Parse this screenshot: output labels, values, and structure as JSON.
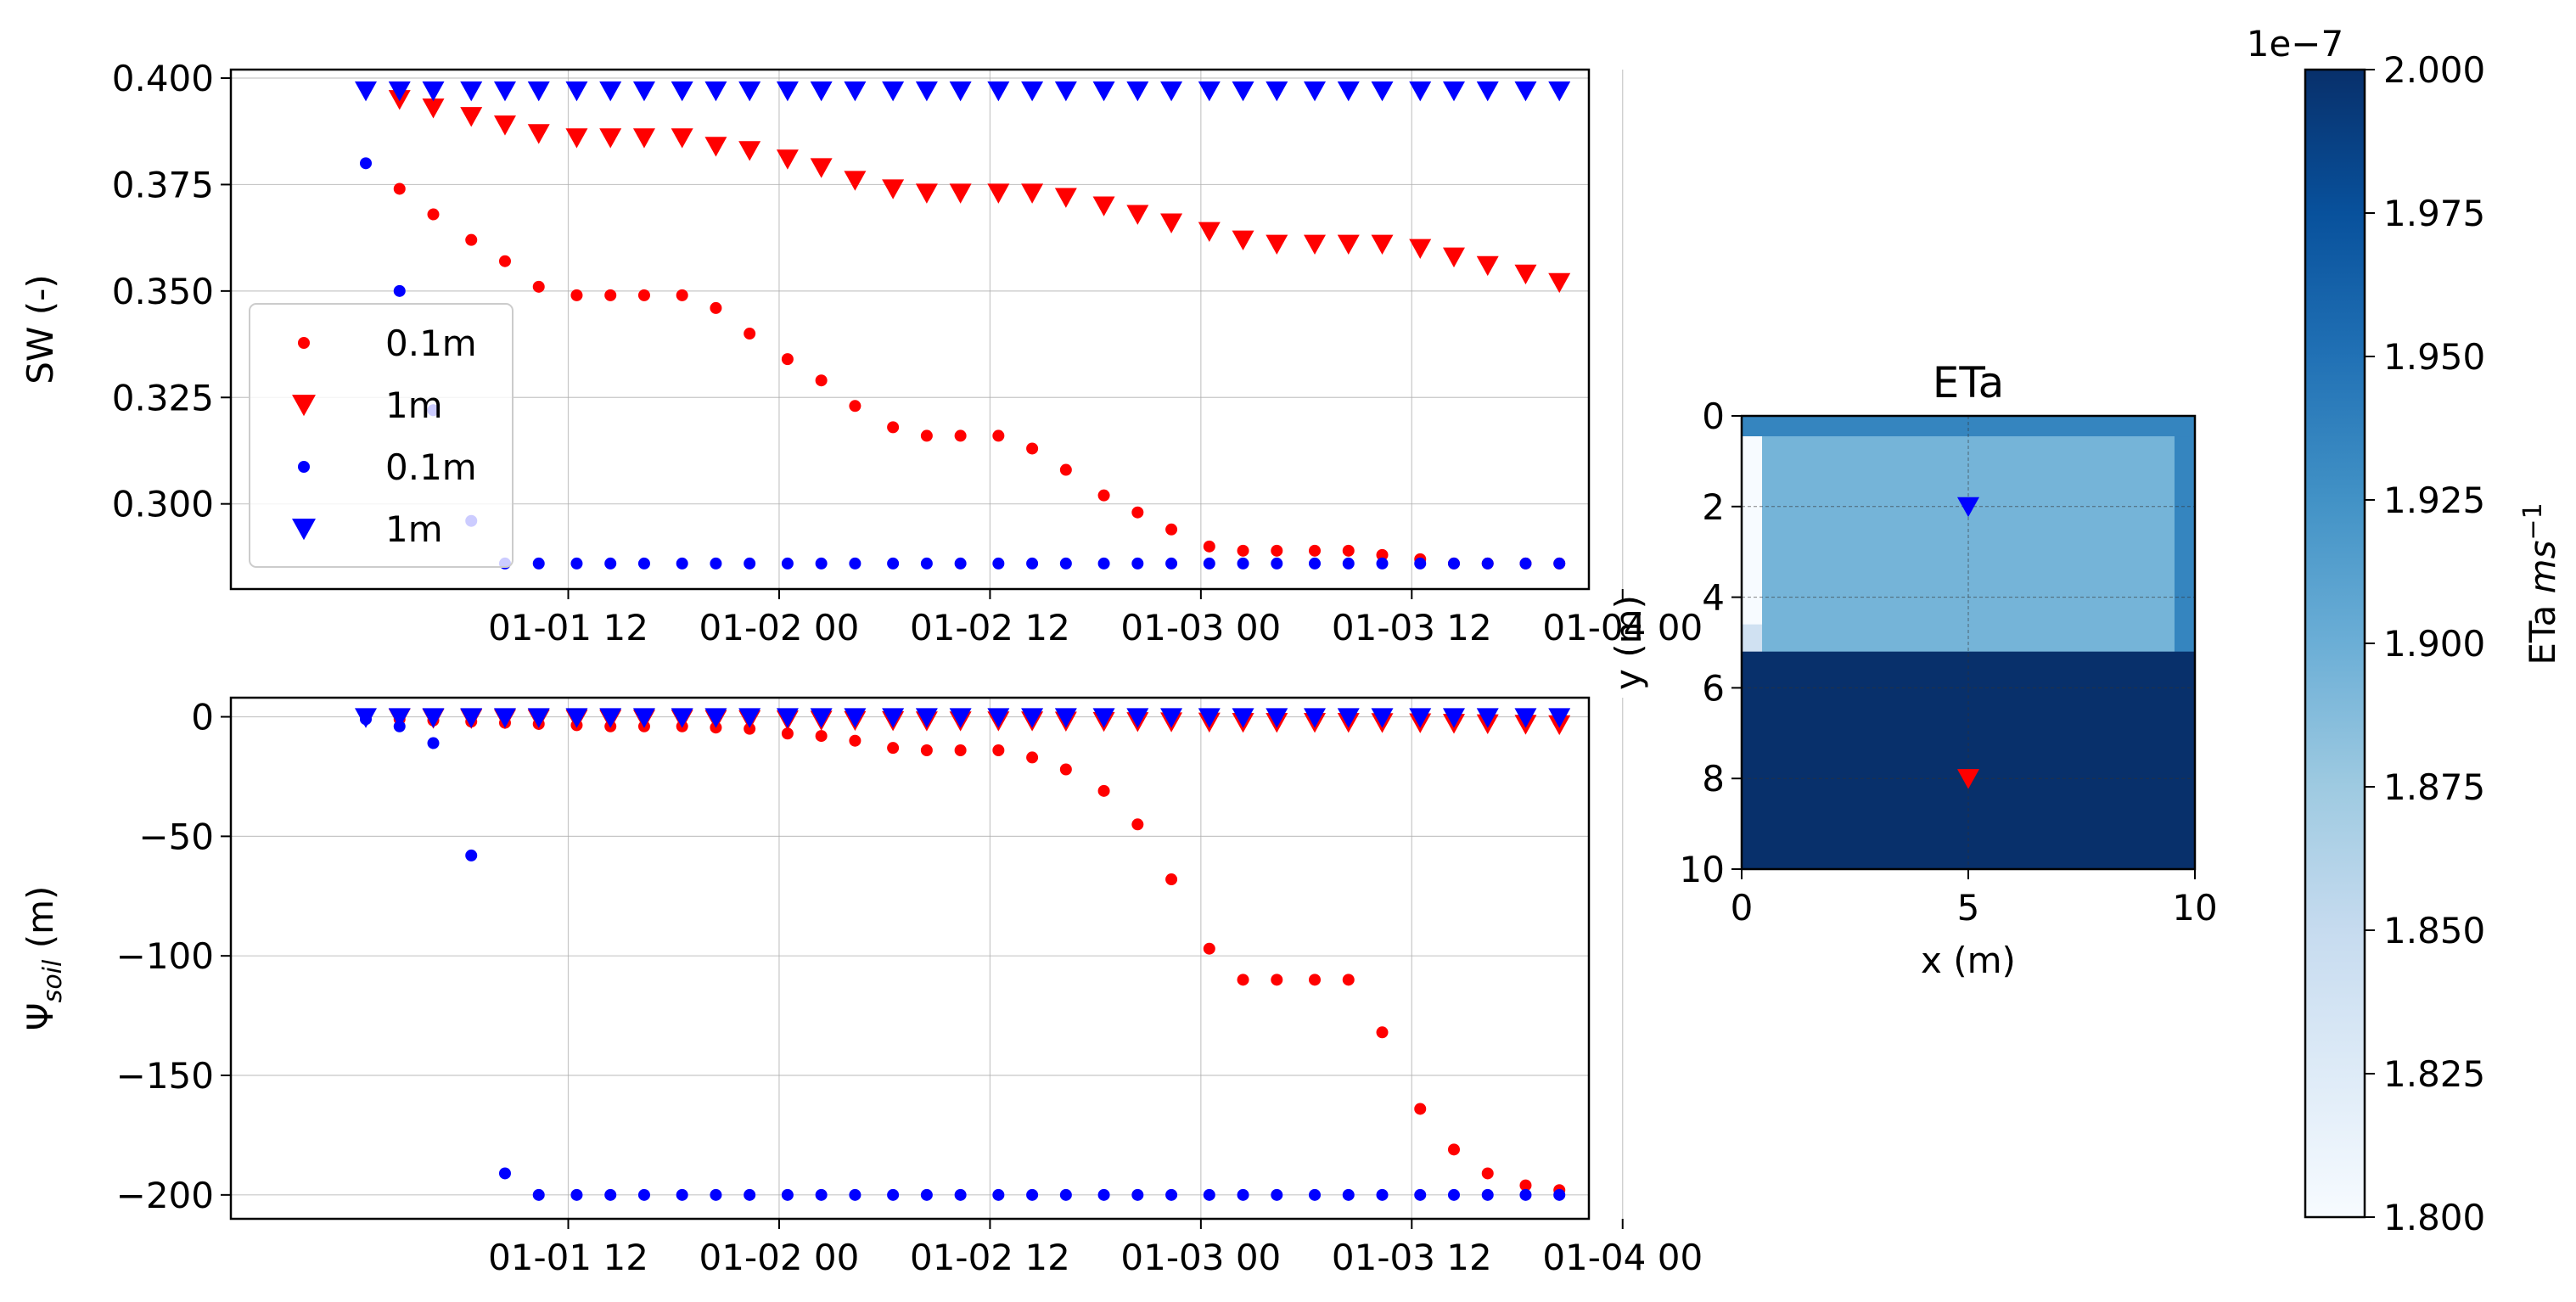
{
  "chart_data": [
    {
      "type": "scatter",
      "id": "sw",
      "ylabel": "SW (-)",
      "yticks": [
        0.3,
        0.325,
        0.35,
        0.375,
        0.4
      ],
      "yticklabels": [
        "0.300",
        "0.325",
        "0.350",
        "0.375",
        "0.400"
      ],
      "ylim": [
        0.28,
        0.402
      ],
      "xlim": [
        -0.3,
        2.92
      ],
      "xticks": [
        0.5,
        1.0,
        1.5,
        2.0,
        2.5,
        3.0
      ],
      "xticklabels": [
        "01-01 12",
        "01-02 00",
        "01-02 12",
        "01-03 00",
        "01-03 12",
        "01-04 00"
      ],
      "grid": true,
      "legend": {
        "placement": "lower-left",
        "entries": [
          {
            "label": "0.1m",
            "marker": "dot",
            "color": "#ff0000"
          },
          {
            "label": "1m",
            "marker": "triangle",
            "color": "#ff0000"
          },
          {
            "label": "0.1m",
            "marker": "dot",
            "color": "#0000ff"
          },
          {
            "label": "1m",
            "marker": "triangle",
            "color": "#0000ff"
          }
        ]
      },
      "series": [
        {
          "color": "#ff0000",
          "marker": "dot",
          "x": [
            0.1,
            0.18,
            0.27,
            0.35,
            0.43,
            0.52,
            0.6,
            0.68,
            0.77,
            0.85,
            0.93,
            1.02,
            1.1,
            1.18,
            1.27,
            1.35,
            1.43,
            1.52,
            1.6,
            1.68,
            1.77,
            1.85,
            1.93,
            2.02,
            2.1,
            2.18,
            2.27,
            2.35,
            2.43,
            2.52,
            2.6,
            2.68,
            2.77,
            2.85
          ],
          "y": [
            0.374,
            0.368,
            0.362,
            0.357,
            0.351,
            0.349,
            0.349,
            0.349,
            0.349,
            0.346,
            0.34,
            0.334,
            0.329,
            0.323,
            0.318,
            0.316,
            0.316,
            0.316,
            0.313,
            0.308,
            0.302,
            0.298,
            0.294,
            0.29,
            0.289,
            0.289,
            0.289,
            0.289,
            0.288,
            0.287,
            0.286,
            0.286,
            0.286,
            0.286
          ]
        },
        {
          "color": "#ff0000",
          "marker": "triangle",
          "x": [
            0.1,
            0.18,
            0.27,
            0.35,
            0.43,
            0.52,
            0.6,
            0.68,
            0.77,
            0.85,
            0.93,
            1.02,
            1.1,
            1.18,
            1.27,
            1.35,
            1.43,
            1.52,
            1.6,
            1.68,
            1.77,
            1.85,
            1.93,
            2.02,
            2.1,
            2.18,
            2.27,
            2.35,
            2.43,
            2.52,
            2.6,
            2.68,
            2.77,
            2.85
          ],
          "y": [
            0.395,
            0.393,
            0.391,
            0.389,
            0.387,
            0.386,
            0.386,
            0.386,
            0.386,
            0.384,
            0.383,
            0.381,
            0.379,
            0.376,
            0.374,
            0.373,
            0.373,
            0.373,
            0.373,
            0.372,
            0.37,
            0.368,
            0.366,
            0.364,
            0.362,
            0.361,
            0.361,
            0.361,
            0.361,
            0.36,
            0.358,
            0.356,
            0.354,
            0.352
          ]
        },
        {
          "color": "#0000ff",
          "marker": "dot",
          "x": [
            0.02,
            0.1,
            0.18,
            0.27,
            0.35,
            0.43,
            0.52,
            0.6,
            0.68,
            0.77,
            0.85,
            0.93,
            1.02,
            1.1,
            1.18,
            1.27,
            1.35,
            1.43,
            1.52,
            1.6,
            1.68,
            1.77,
            1.85,
            1.93,
            2.02,
            2.1,
            2.18,
            2.27,
            2.35,
            2.43,
            2.52,
            2.6,
            2.68,
            2.77,
            2.85
          ],
          "y": [
            0.38,
            0.35,
            0.322,
            0.296,
            0.286,
            0.286,
            0.286,
            0.286,
            0.286,
            0.286,
            0.286,
            0.286,
            0.286,
            0.286,
            0.286,
            0.286,
            0.286,
            0.286,
            0.286,
            0.286,
            0.286,
            0.286,
            0.286,
            0.286,
            0.286,
            0.286,
            0.286,
            0.286,
            0.286,
            0.286,
            0.286,
            0.286,
            0.286,
            0.286,
            0.286
          ]
        },
        {
          "color": "#0000ff",
          "marker": "triangle",
          "x": [
            0.02,
            0.1,
            0.18,
            0.27,
            0.35,
            0.43,
            0.52,
            0.6,
            0.68,
            0.77,
            0.85,
            0.93,
            1.02,
            1.1,
            1.18,
            1.27,
            1.35,
            1.43,
            1.52,
            1.6,
            1.68,
            1.77,
            1.85,
            1.93,
            2.02,
            2.1,
            2.18,
            2.27,
            2.35,
            2.43,
            2.52,
            2.6,
            2.68,
            2.77,
            2.85
          ],
          "y": [
            0.397,
            0.397,
            0.397,
            0.397,
            0.397,
            0.397,
            0.397,
            0.397,
            0.397,
            0.397,
            0.397,
            0.397,
            0.397,
            0.397,
            0.397,
            0.397,
            0.397,
            0.397,
            0.397,
            0.397,
            0.397,
            0.397,
            0.397,
            0.397,
            0.397,
            0.397,
            0.397,
            0.397,
            0.397,
            0.397,
            0.397,
            0.397,
            0.397,
            0.397,
            0.397
          ]
        }
      ]
    },
    {
      "type": "scatter",
      "id": "psi",
      "ylabel_main": "Ψ",
      "ylabel_sub": "soil",
      "ylabel_tail": " (m)",
      "yticks": [
        -200,
        -150,
        -100,
        -50,
        0
      ],
      "yticklabels": [
        "−200",
        "−150",
        "−100",
        "−50",
        "0"
      ],
      "ylim": [
        -210,
        8
      ],
      "xlim": [
        -0.3,
        2.92
      ],
      "xticks": [
        0.5,
        1.0,
        1.5,
        2.0,
        2.5,
        3.0
      ],
      "xticklabels": [
        "01-01 12",
        "01-02 00",
        "01-02 12",
        "01-03 00",
        "01-03 12",
        "01-04 00"
      ],
      "grid": true,
      "series": [
        {
          "color": "#ff0000",
          "marker": "dot",
          "x": [
            0.1,
            0.18,
            0.27,
            0.35,
            0.43,
            0.52,
            0.6,
            0.68,
            0.77,
            0.85,
            0.93,
            1.02,
            1.1,
            1.18,
            1.27,
            1.35,
            1.43,
            1.52,
            1.6,
            1.68,
            1.77,
            1.85,
            1.93,
            2.02,
            2.1,
            2.18,
            2.27,
            2.35,
            2.43,
            2.52,
            2.6,
            2.68,
            2.77,
            2.85
          ],
          "y": [
            -1,
            -1.5,
            -2,
            -2.5,
            -3,
            -3.5,
            -4,
            -4,
            -4,
            -4.5,
            -5,
            -7,
            -8,
            -10,
            -13,
            -14,
            -14,
            -14,
            -17,
            -22,
            -31,
            -45,
            -68,
            -97,
            -110,
            -110,
            -110,
            -110,
            -132,
            -164,
            -181,
            -191,
            -196,
            -198
          ]
        },
        {
          "color": "#ff0000",
          "marker": "triangle",
          "x": [
            0.1,
            0.18,
            0.27,
            0.35,
            0.43,
            0.52,
            0.6,
            0.68,
            0.77,
            0.85,
            0.93,
            1.02,
            1.1,
            1.18,
            1.27,
            1.35,
            1.43,
            1.52,
            1.6,
            1.68,
            1.77,
            1.85,
            1.93,
            2.02,
            2.1,
            2.18,
            2.27,
            2.35,
            2.43,
            2.52,
            2.6,
            2.68,
            2.77,
            2.85
          ],
          "y": [
            -0.5,
            -0.6,
            -0.7,
            -0.8,
            -0.9,
            -1,
            -1,
            -1,
            -1,
            -1.1,
            -1.2,
            -1.3,
            -1.4,
            -1.5,
            -1.6,
            -1.7,
            -1.7,
            -1.7,
            -1.7,
            -1.8,
            -1.9,
            -2,
            -2.1,
            -2.2,
            -2.3,
            -2.3,
            -2.3,
            -2.3,
            -2.4,
            -2.5,
            -2.7,
            -2.9,
            -3.1,
            -3.3
          ]
        },
        {
          "color": "#0000ff",
          "marker": "dot",
          "x": [
            0.02,
            0.1,
            0.18,
            0.27,
            0.35,
            0.43,
            0.52,
            0.6,
            0.68,
            0.77,
            0.85,
            0.93,
            1.02,
            1.1,
            1.18,
            1.27,
            1.35,
            1.43,
            1.52,
            1.6,
            1.68,
            1.77,
            1.85,
            1.93,
            2.02,
            2.1,
            2.18,
            2.27,
            2.35,
            2.43,
            2.52,
            2.6,
            2.68,
            2.77,
            2.85
          ],
          "y": [
            -1,
            -4,
            -11,
            -58,
            -191,
            -200,
            -200,
            -200,
            -200,
            -200,
            -200,
            -200,
            -200,
            -200,
            -200,
            -200,
            -200,
            -200,
            -200,
            -200,
            -200,
            -200,
            -200,
            -200,
            -200,
            -200,
            -200,
            -200,
            -200,
            -200,
            -200,
            -200,
            -200,
            -200,
            -200
          ]
        },
        {
          "color": "#0000ff",
          "marker": "triangle",
          "x": [
            0.02,
            0.1,
            0.18,
            0.27,
            0.35,
            0.43,
            0.52,
            0.6,
            0.68,
            0.77,
            0.85,
            0.93,
            1.02,
            1.1,
            1.18,
            1.27,
            1.35,
            1.43,
            1.52,
            1.6,
            1.68,
            1.77,
            1.85,
            1.93,
            2.02,
            2.1,
            2.18,
            2.27,
            2.35,
            2.43,
            2.52,
            2.6,
            2.68,
            2.77,
            2.85
          ],
          "y": [
            -0.3,
            -0.3,
            -0.3,
            -0.3,
            -0.3,
            -0.3,
            -0.3,
            -0.3,
            -0.3,
            -0.3,
            -0.3,
            -0.3,
            -0.3,
            -0.3,
            -0.3,
            -0.3,
            -0.3,
            -0.3,
            -0.3,
            -0.3,
            -0.3,
            -0.3,
            -0.3,
            -0.3,
            -0.3,
            -0.3,
            -0.3,
            -0.3,
            -0.3,
            -0.3,
            -0.3,
            -0.3,
            -0.3,
            -0.3,
            -0.3
          ]
        }
      ]
    },
    {
      "type": "heatmap",
      "id": "eta-map",
      "title": "ETa",
      "xlabel": "x (m)",
      "ylabel": "y (m)",
      "xlim": [
        0,
        10
      ],
      "ylim": [
        0,
        10
      ],
      "xticks": [
        0,
        5,
        10
      ],
      "xticklabels": [
        "0",
        "5",
        "10"
      ],
      "yticks": [
        0,
        2,
        4,
        6,
        8,
        10
      ],
      "yticklabels": [
        "0",
        "2",
        "4",
        "6",
        "8",
        "10"
      ],
      "grid": true,
      "cells": [
        {
          "x0": 0,
          "x1": 10,
          "y0": 0,
          "y1": 0.45,
          "value": 1.935
        },
        {
          "x0": 0,
          "x1": 0.45,
          "y0": 0.45,
          "y1": 4.6,
          "value": 1.8
        },
        {
          "x0": 0,
          "x1": 0.45,
          "y0": 4.6,
          "y1": 5.2,
          "value": 1.84
        },
        {
          "x0": 0.45,
          "x1": 9.55,
          "y0": 0.45,
          "y1": 5.2,
          "value": 1.895
        },
        {
          "x0": 9.55,
          "x1": 10,
          "y0": 0.45,
          "y1": 5.2,
          "value": 1.935
        },
        {
          "x0": 0,
          "x1": 10,
          "y0": 5.2,
          "y1": 10,
          "value": 2.0
        }
      ],
      "markers": [
        {
          "x": 5,
          "y": 2,
          "color": "#0000ff",
          "marker": "triangle"
        },
        {
          "x": 5,
          "y": 8,
          "color": "#ff0000",
          "marker": "triangle"
        }
      ]
    },
    {
      "type": "colorbar",
      "id": "eta-colorbar",
      "label_main": "ETa ",
      "label_unit": "ms",
      "label_exp": "−1",
      "exponent_label": "1e−7",
      "range": [
        1.8,
        2.0
      ],
      "ticks": [
        1.8,
        1.825,
        1.85,
        1.875,
        1.9,
        1.925,
        1.95,
        1.975,
        2.0
      ],
      "ticklabels": [
        "1.800",
        "1.825",
        "1.850",
        "1.875",
        "1.900",
        "1.925",
        "1.950",
        "1.975",
        "2.000"
      ],
      "colormap": "Blues"
    }
  ]
}
